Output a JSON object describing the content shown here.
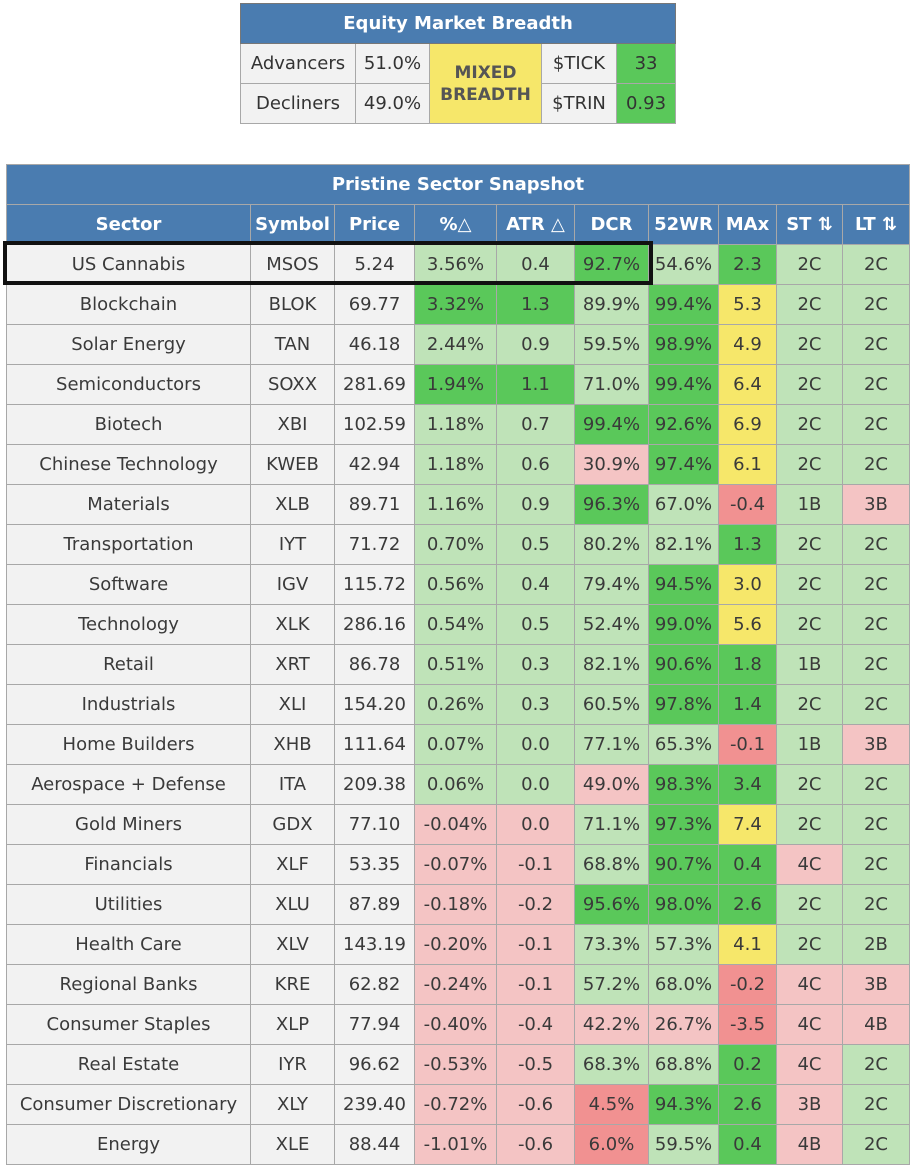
{
  "breadth": {
    "title": "Equity Market Breadth",
    "advancers_label": "Advancers",
    "advancers_value": "51.0%",
    "decliners_label": "Decliners",
    "decliners_value": "49.0%",
    "status": "MIXED BREADTH",
    "tick_label": "$TICK",
    "tick_value": "33",
    "trin_label": "$TRIN",
    "trin_value": "0.93"
  },
  "snapshot": {
    "title": "Pristine Sector Snapshot",
    "columns": [
      "Sector",
      "Symbol",
      "Price",
      "%△",
      "ATR △",
      "DCR",
      "52WR",
      "MAx",
      "ST ⇅",
      "LT ⇅"
    ],
    "colors": {
      "plain": "#f2f2f2",
      "light_green": "#bfe3b8",
      "green": "#5ac85a",
      "pink": "#f4c4c4",
      "red": "#f19191",
      "yellow": "#f6e76a",
      "header": "#4a7cb0"
    },
    "rows": [
      {
        "cells": [
          "US Cannabis",
          "MSOS",
          "5.24",
          "3.56%",
          "0.4",
          "92.7%",
          "54.6%",
          "2.3",
          "2C",
          "2C"
        ],
        "colors": [
          "plain",
          "plain",
          "plain",
          "lg",
          "lg",
          "g",
          "lg",
          "g",
          "lg",
          "lg"
        ]
      },
      {
        "cells": [
          "Blockchain",
          "BLOK",
          "69.77",
          "3.32%",
          "1.3",
          "89.9%",
          "99.4%",
          "5.3",
          "2C",
          "2C"
        ],
        "colors": [
          "plain",
          "plain",
          "plain",
          "g",
          "g",
          "lg",
          "g",
          "y",
          "lg",
          "lg"
        ]
      },
      {
        "cells": [
          "Solar Energy",
          "TAN",
          "46.18",
          "2.44%",
          "0.9",
          "59.5%",
          "98.9%",
          "4.9",
          "2C",
          "2C"
        ],
        "colors": [
          "plain",
          "plain",
          "plain",
          "lg",
          "lg",
          "lg",
          "g",
          "y",
          "lg",
          "lg"
        ]
      },
      {
        "cells": [
          "Semiconductors",
          "SOXX",
          "281.69",
          "1.94%",
          "1.1",
          "71.0%",
          "99.4%",
          "6.4",
          "2C",
          "2C"
        ],
        "colors": [
          "plain",
          "plain",
          "plain",
          "g",
          "g",
          "lg",
          "g",
          "y",
          "lg",
          "lg"
        ]
      },
      {
        "cells": [
          "Biotech",
          "XBI",
          "102.59",
          "1.18%",
          "0.7",
          "99.4%",
          "92.6%",
          "6.9",
          "2C",
          "2C"
        ],
        "colors": [
          "plain",
          "plain",
          "plain",
          "lg",
          "lg",
          "g",
          "g",
          "y",
          "lg",
          "lg"
        ]
      },
      {
        "cells": [
          "Chinese Technology",
          "KWEB",
          "42.94",
          "1.18%",
          "0.6",
          "30.9%",
          "97.4%",
          "6.1",
          "2C",
          "2C"
        ],
        "colors": [
          "plain",
          "plain",
          "plain",
          "lg",
          "lg",
          "p",
          "g",
          "y",
          "lg",
          "lg"
        ]
      },
      {
        "cells": [
          "Materials",
          "XLB",
          "89.71",
          "1.16%",
          "0.9",
          "96.3%",
          "67.0%",
          "-0.4",
          "1B",
          "3B"
        ],
        "colors": [
          "plain",
          "plain",
          "plain",
          "lg",
          "lg",
          "g",
          "lg",
          "r",
          "lg",
          "p"
        ]
      },
      {
        "cells": [
          "Transportation",
          "IYT",
          "71.72",
          "0.70%",
          "0.5",
          "80.2%",
          "82.1%",
          "1.3",
          "2C",
          "2C"
        ],
        "colors": [
          "plain",
          "plain",
          "plain",
          "lg",
          "lg",
          "lg",
          "lg",
          "g",
          "lg",
          "lg"
        ]
      },
      {
        "cells": [
          "Software",
          "IGV",
          "115.72",
          "0.56%",
          "0.4",
          "79.4%",
          "94.5%",
          "3.0",
          "2C",
          "2C"
        ],
        "colors": [
          "plain",
          "plain",
          "plain",
          "lg",
          "lg",
          "lg",
          "g",
          "y",
          "lg",
          "lg"
        ]
      },
      {
        "cells": [
          "Technology",
          "XLK",
          "286.16",
          "0.54%",
          "0.5",
          "52.4%",
          "99.0%",
          "5.6",
          "2C",
          "2C"
        ],
        "colors": [
          "plain",
          "plain",
          "plain",
          "lg",
          "lg",
          "lg",
          "g",
          "y",
          "lg",
          "lg"
        ]
      },
      {
        "cells": [
          "Retail",
          "XRT",
          "86.78",
          "0.51%",
          "0.3",
          "82.1%",
          "90.6%",
          "1.8",
          "1B",
          "2C"
        ],
        "colors": [
          "plain",
          "plain",
          "plain",
          "lg",
          "lg",
          "lg",
          "g",
          "g",
          "lg",
          "lg"
        ]
      },
      {
        "cells": [
          "Industrials",
          "XLI",
          "154.20",
          "0.26%",
          "0.3",
          "60.5%",
          "97.8%",
          "1.4",
          "2C",
          "2C"
        ],
        "colors": [
          "plain",
          "plain",
          "plain",
          "lg",
          "lg",
          "lg",
          "g",
          "g",
          "lg",
          "lg"
        ]
      },
      {
        "cells": [
          "Home Builders",
          "XHB",
          "111.64",
          "0.07%",
          "0.0",
          "77.1%",
          "65.3%",
          "-0.1",
          "1B",
          "3B"
        ],
        "colors": [
          "plain",
          "plain",
          "plain",
          "lg",
          "lg",
          "lg",
          "lg",
          "r",
          "lg",
          "p"
        ]
      },
      {
        "cells": [
          "Aerospace + Defense",
          "ITA",
          "209.38",
          "0.06%",
          "0.0",
          "49.0%",
          "98.3%",
          "3.4",
          "2C",
          "2C"
        ],
        "colors": [
          "plain",
          "plain",
          "plain",
          "lg",
          "lg",
          "p",
          "g",
          "g",
          "lg",
          "lg"
        ]
      },
      {
        "cells": [
          "Gold Miners",
          "GDX",
          "77.10",
          "-0.04%",
          "0.0",
          "71.1%",
          "97.3%",
          "7.4",
          "2C",
          "2C"
        ],
        "colors": [
          "plain",
          "plain",
          "plain",
          "p",
          "p",
          "lg",
          "g",
          "y",
          "lg",
          "lg"
        ]
      },
      {
        "cells": [
          "Financials",
          "XLF",
          "53.35",
          "-0.07%",
          "-0.1",
          "68.8%",
          "90.7%",
          "0.4",
          "4C",
          "2C"
        ],
        "colors": [
          "plain",
          "plain",
          "plain",
          "p",
          "p",
          "lg",
          "g",
          "g",
          "p",
          "lg"
        ]
      },
      {
        "cells": [
          "Utilities",
          "XLU",
          "87.89",
          "-0.18%",
          "-0.2",
          "95.6%",
          "98.0%",
          "2.6",
          "2C",
          "2C"
        ],
        "colors": [
          "plain",
          "plain",
          "plain",
          "p",
          "p",
          "g",
          "g",
          "g",
          "lg",
          "lg"
        ]
      },
      {
        "cells": [
          "Health Care",
          "XLV",
          "143.19",
          "-0.20%",
          "-0.1",
          "73.3%",
          "57.3%",
          "4.1",
          "2C",
          "2B"
        ],
        "colors": [
          "plain",
          "plain",
          "plain",
          "p",
          "p",
          "lg",
          "lg",
          "y",
          "lg",
          "lg"
        ]
      },
      {
        "cells": [
          "Regional Banks",
          "KRE",
          "62.82",
          "-0.24%",
          "-0.1",
          "57.2%",
          "68.0%",
          "-0.2",
          "4C",
          "3B"
        ],
        "colors": [
          "plain",
          "plain",
          "plain",
          "p",
          "p",
          "lg",
          "lg",
          "r",
          "p",
          "p"
        ]
      },
      {
        "cells": [
          "Consumer Staples",
          "XLP",
          "77.94",
          "-0.40%",
          "-0.4",
          "42.2%",
          "26.7%",
          "-3.5",
          "4C",
          "4B"
        ],
        "colors": [
          "plain",
          "plain",
          "plain",
          "p",
          "p",
          "p",
          "p",
          "r",
          "p",
          "p"
        ]
      },
      {
        "cells": [
          "Real Estate",
          "IYR",
          "96.62",
          "-0.53%",
          "-0.5",
          "68.3%",
          "68.8%",
          "0.2",
          "4C",
          "2C"
        ],
        "colors": [
          "plain",
          "plain",
          "plain",
          "p",
          "p",
          "lg",
          "lg",
          "g",
          "p",
          "lg"
        ]
      },
      {
        "cells": [
          "Consumer Discretionary",
          "XLY",
          "239.40",
          "-0.72%",
          "-0.6",
          "4.5%",
          "94.3%",
          "2.6",
          "3B",
          "2C"
        ],
        "colors": [
          "plain",
          "plain",
          "plain",
          "p",
          "p",
          "r",
          "g",
          "g",
          "p",
          "lg"
        ]
      },
      {
        "cells": [
          "Energy",
          "XLE",
          "88.44",
          "-1.01%",
          "-0.6",
          "6.0%",
          "59.5%",
          "0.4",
          "4B",
          "2C"
        ],
        "colors": [
          "plain",
          "plain",
          "plain",
          "p",
          "p",
          "r",
          "lg",
          "g",
          "p",
          "lg"
        ]
      }
    ]
  }
}
